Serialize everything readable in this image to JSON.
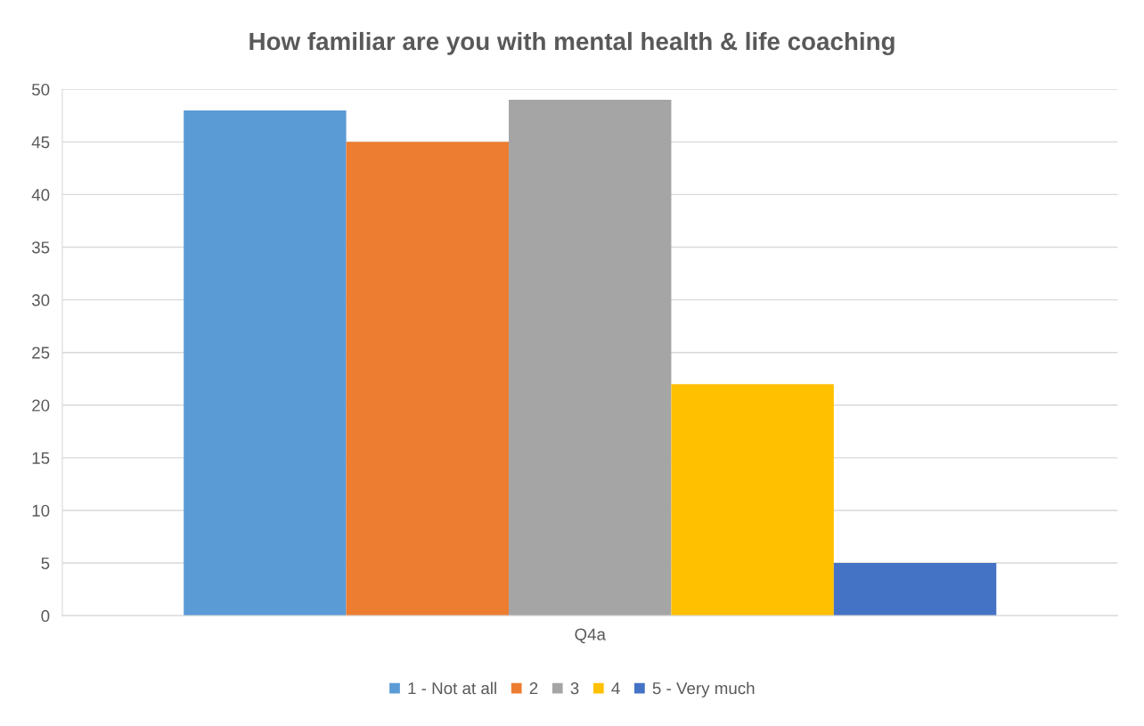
{
  "chart_data": {
    "type": "bar",
    "title": "How familiar are you with mental health & life coaching",
    "categories": [
      "Q4a"
    ],
    "series": [
      {
        "name": "1 - Not at all",
        "color": "#5b9bd5",
        "values": [
          48
        ]
      },
      {
        "name": "2",
        "color": "#ed7d31",
        "values": [
          45
        ]
      },
      {
        "name": "3",
        "color": "#a5a5a5",
        "values": [
          49
        ]
      },
      {
        "name": "4",
        "color": "#ffc000",
        "values": [
          22
        ]
      },
      {
        "name": "5 - Very much",
        "color": "#4472c4",
        "values": [
          5
        ]
      }
    ],
    "ylim": [
      0,
      50
    ],
    "yticks": [
      0,
      5,
      10,
      15,
      20,
      25,
      30,
      35,
      40,
      45,
      50
    ],
    "grid": "y",
    "legend": "bottom"
  }
}
